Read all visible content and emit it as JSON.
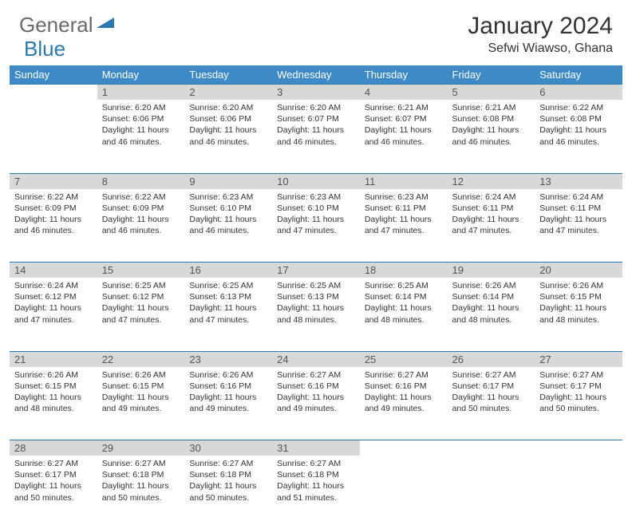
{
  "brand": {
    "general": "General",
    "blue": "Blue",
    "tri_color": "#2a7ab0"
  },
  "title": "January 2024",
  "location": "Sefwi Wiawso, Ghana",
  "colors": {
    "header_bg": "#3e8ac6",
    "header_text": "#ffffff",
    "daynum_bg": "#d8d8d8",
    "border": "#2a7ab0",
    "text": "#333333",
    "background": "#ffffff"
  },
  "day_headers": [
    "Sunday",
    "Monday",
    "Tuesday",
    "Wednesday",
    "Thursday",
    "Friday",
    "Saturday"
  ],
  "weeks": [
    [
      null,
      {
        "n": "1",
        "sr": "6:20 AM",
        "ss": "6:06 PM",
        "dl": "11 hours and 46 minutes."
      },
      {
        "n": "2",
        "sr": "6:20 AM",
        "ss": "6:06 PM",
        "dl": "11 hours and 46 minutes."
      },
      {
        "n": "3",
        "sr": "6:20 AM",
        "ss": "6:07 PM",
        "dl": "11 hours and 46 minutes."
      },
      {
        "n": "4",
        "sr": "6:21 AM",
        "ss": "6:07 PM",
        "dl": "11 hours and 46 minutes."
      },
      {
        "n": "5",
        "sr": "6:21 AM",
        "ss": "6:08 PM",
        "dl": "11 hours and 46 minutes."
      },
      {
        "n": "6",
        "sr": "6:22 AM",
        "ss": "6:08 PM",
        "dl": "11 hours and 46 minutes."
      }
    ],
    [
      {
        "n": "7",
        "sr": "6:22 AM",
        "ss": "6:09 PM",
        "dl": "11 hours and 46 minutes."
      },
      {
        "n": "8",
        "sr": "6:22 AM",
        "ss": "6:09 PM",
        "dl": "11 hours and 46 minutes."
      },
      {
        "n": "9",
        "sr": "6:23 AM",
        "ss": "6:10 PM",
        "dl": "11 hours and 46 minutes."
      },
      {
        "n": "10",
        "sr": "6:23 AM",
        "ss": "6:10 PM",
        "dl": "11 hours and 47 minutes."
      },
      {
        "n": "11",
        "sr": "6:23 AM",
        "ss": "6:11 PM",
        "dl": "11 hours and 47 minutes."
      },
      {
        "n": "12",
        "sr": "6:24 AM",
        "ss": "6:11 PM",
        "dl": "11 hours and 47 minutes."
      },
      {
        "n": "13",
        "sr": "6:24 AM",
        "ss": "6:11 PM",
        "dl": "11 hours and 47 minutes."
      }
    ],
    [
      {
        "n": "14",
        "sr": "6:24 AM",
        "ss": "6:12 PM",
        "dl": "11 hours and 47 minutes."
      },
      {
        "n": "15",
        "sr": "6:25 AM",
        "ss": "6:12 PM",
        "dl": "11 hours and 47 minutes."
      },
      {
        "n": "16",
        "sr": "6:25 AM",
        "ss": "6:13 PM",
        "dl": "11 hours and 47 minutes."
      },
      {
        "n": "17",
        "sr": "6:25 AM",
        "ss": "6:13 PM",
        "dl": "11 hours and 48 minutes."
      },
      {
        "n": "18",
        "sr": "6:25 AM",
        "ss": "6:14 PM",
        "dl": "11 hours and 48 minutes."
      },
      {
        "n": "19",
        "sr": "6:26 AM",
        "ss": "6:14 PM",
        "dl": "11 hours and 48 minutes."
      },
      {
        "n": "20",
        "sr": "6:26 AM",
        "ss": "6:15 PM",
        "dl": "11 hours and 48 minutes."
      }
    ],
    [
      {
        "n": "21",
        "sr": "6:26 AM",
        "ss": "6:15 PM",
        "dl": "11 hours and 48 minutes."
      },
      {
        "n": "22",
        "sr": "6:26 AM",
        "ss": "6:15 PM",
        "dl": "11 hours and 49 minutes."
      },
      {
        "n": "23",
        "sr": "6:26 AM",
        "ss": "6:16 PM",
        "dl": "11 hours and 49 minutes."
      },
      {
        "n": "24",
        "sr": "6:27 AM",
        "ss": "6:16 PM",
        "dl": "11 hours and 49 minutes."
      },
      {
        "n": "25",
        "sr": "6:27 AM",
        "ss": "6:16 PM",
        "dl": "11 hours and 49 minutes."
      },
      {
        "n": "26",
        "sr": "6:27 AM",
        "ss": "6:17 PM",
        "dl": "11 hours and 50 minutes."
      },
      {
        "n": "27",
        "sr": "6:27 AM",
        "ss": "6:17 PM",
        "dl": "11 hours and 50 minutes."
      }
    ],
    [
      {
        "n": "28",
        "sr": "6:27 AM",
        "ss": "6:17 PM",
        "dl": "11 hours and 50 minutes."
      },
      {
        "n": "29",
        "sr": "6:27 AM",
        "ss": "6:18 PM",
        "dl": "11 hours and 50 minutes."
      },
      {
        "n": "30",
        "sr": "6:27 AM",
        "ss": "6:18 PM",
        "dl": "11 hours and 50 minutes."
      },
      {
        "n": "31",
        "sr": "6:27 AM",
        "ss": "6:18 PM",
        "dl": "11 hours and 51 minutes."
      },
      null,
      null,
      null
    ]
  ],
  "labels": {
    "sunrise": "Sunrise:",
    "sunset": "Sunset:",
    "daylight": "Daylight:"
  }
}
